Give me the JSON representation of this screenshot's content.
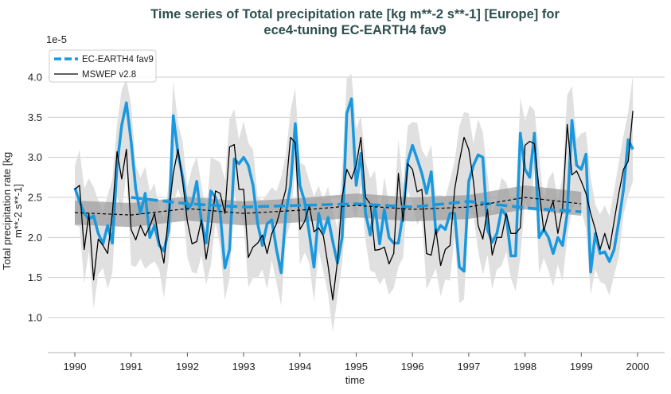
{
  "chart_data": {
    "type": "line",
    "title_line1": "Time series of Total precipitation rate [kg m**-2 s**-1] [Europe] for",
    "title_line2": "ece4-tuning EC-EARTH4 fav9",
    "xlabel": "time",
    "ylabel_line1": "Total precipitation rate [kg",
    "ylabel_line2": "m**-2 s**-1]",
    "y_exponent_label": "1e-5",
    "xlim": [
      1989.5,
      2000.45
    ],
    "ylim": [
      0.56,
      4.3
    ],
    "xticks": [
      "1990",
      "1991",
      "1992",
      "1993",
      "1994",
      "1995",
      "1996",
      "1997",
      "1998",
      "1999",
      "2000"
    ],
    "yticks": [
      "1.0",
      "1.5",
      "2.0",
      "2.5",
      "3.0",
      "3.5",
      "4.0"
    ],
    "grid": "horizontal",
    "legend_position": "top-left",
    "x_start": 1990,
    "x_step_months": 1,
    "series": [
      {
        "name": "EC-EARTH4 fav9",
        "color": "#1a98de",
        "style": "solid-thick",
        "values": [
          2.62,
          2.45,
          2.3,
          2.23,
          2.27,
          2.05,
          1.92,
          2.15,
          1.93,
          2.9,
          3.4,
          3.68,
          3.2,
          2.6,
          2.3,
          2.55,
          2.0,
          2.15,
          1.9,
          1.83,
          2.1,
          3.52,
          3.05,
          2.75,
          2.35,
          2.42,
          2.7,
          2.2,
          1.93,
          2.58,
          2.5,
          2.3,
          1.62,
          1.85,
          2.98,
          2.92,
          3.0,
          2.9,
          2.65,
          2.17,
          1.9,
          2.17,
          2.22,
          1.85,
          1.56,
          2.3,
          2.65,
          3.42,
          2.65,
          2.45,
          2.05,
          1.63,
          2.3,
          2.05,
          2.25,
          1.95,
          1.68,
          2.0,
          3.55,
          3.73,
          2.65,
          3.05,
          2.3,
          2.03,
          2.4,
          1.92,
          2.35,
          2.0,
          1.93,
          1.93,
          2.3,
          2.95,
          3.15,
          2.98,
          2.8,
          2.55,
          2.82,
          2.05,
          2.15,
          2.1,
          2.3,
          2.3,
          1.63,
          1.58,
          2.7,
          2.9,
          3.03,
          3.0,
          2.1,
          1.94,
          2.05,
          2.35,
          2.27,
          1.77,
          1.77,
          3.3,
          2.85,
          2.75,
          3.3,
          2.0,
          2.1,
          2.0,
          1.8,
          2.0,
          1.9,
          2.3,
          3.46,
          2.9,
          2.85,
          3.04,
          1.57,
          2.05,
          1.8,
          1.82,
          1.7,
          1.85,
          2.2,
          2.6,
          3.22,
          3.1
        ]
      },
      {
        "name": "MSWEP v2.8",
        "color": "#000000",
        "style": "solid-thin",
        "values": [
          2.6,
          2.65,
          1.85,
          2.3,
          1.47,
          1.98,
          1.9,
          1.8,
          2.3,
          3.07,
          2.73,
          3.1,
          2.1,
          1.97,
          2.15,
          2.02,
          2.14,
          2.3,
          1.95,
          1.68,
          2.3,
          2.8,
          3.1,
          2.7,
          2.2,
          1.92,
          1.95,
          2.22,
          1.73,
          2.1,
          2.58,
          2.55,
          2.3,
          3.13,
          3.16,
          2.6,
          2.6,
          1.75,
          1.88,
          1.93,
          2.03,
          1.8,
          2.05,
          2.17,
          2.38,
          2.6,
          3.25,
          3.18,
          2.1,
          2.2,
          2.4,
          2.07,
          2.12,
          2.02,
          1.65,
          1.22,
          1.7,
          2.5,
          2.85,
          2.73,
          2.9,
          3.25,
          2.5,
          2.42,
          1.84,
          1.85,
          1.88,
          1.67,
          1.8,
          2.8,
          2.2,
          2.92,
          2.85,
          2.57,
          2.6,
          1.8,
          1.78,
          2.1,
          1.65,
          1.85,
          1.9,
          2.6,
          2.95,
          3.25,
          3.1,
          2.7,
          2.15,
          1.98,
          2.35,
          1.78,
          2.0,
          2.0,
          2.3,
          2.05,
          2.05,
          2.12,
          3.15,
          3.2,
          3.17,
          2.6,
          2.08,
          2.3,
          2.45,
          2.05,
          2.35,
          3.41,
          2.78,
          2.83,
          2.7,
          2.55,
          2.3,
          2.1,
          1.85,
          2.05,
          1.85,
          2.2,
          2.55,
          2.85,
          2.95,
          3.58
        ]
      }
    ],
    "trends": [
      {
        "series": "EC-EARTH4 fav9",
        "style": "dashed-thick",
        "color": "#1a98de",
        "x": [
          1991,
          1992,
          1993,
          1994,
          1995,
          1996,
          1997,
          1998,
          1999
        ],
        "values": [
          2.5,
          2.42,
          2.38,
          2.4,
          2.42,
          2.38,
          2.45,
          2.37,
          2.32
        ]
      },
      {
        "series": "MSWEP v2.8",
        "style": "dashed-thin",
        "color": "#000000",
        "x": [
          1990,
          1991,
          1992,
          1993,
          1994,
          1995,
          1996,
          1997,
          1998,
          1999
        ],
        "values": [
          2.31,
          2.28,
          2.36,
          2.3,
          2.34,
          2.4,
          2.35,
          2.38,
          2.5,
          2.42
        ],
        "band_halfwidth": 0.15
      }
    ],
    "spread_band_halfwidth": 0.45
  }
}
